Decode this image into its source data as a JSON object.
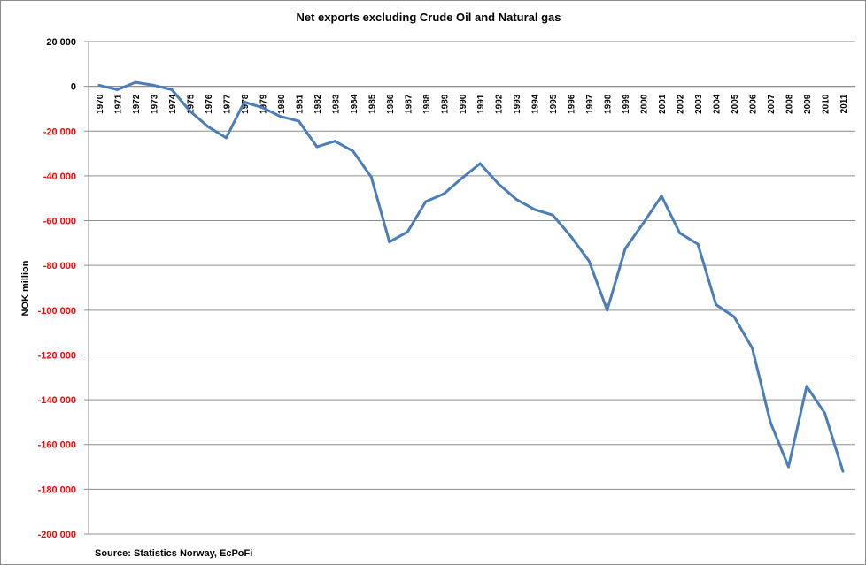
{
  "chart_data": {
    "type": "line",
    "title": "Net exports excluding Crude Oil and Natural gas",
    "ylabel": "NOK million",
    "xlabel": "",
    "source": "Source: Statistics  Norway, EcPoFi",
    "ylim": [
      -200000,
      20000
    ],
    "y_ticks": [
      20000,
      0,
      -20000,
      -40000,
      -60000,
      -80000,
      -100000,
      -120000,
      -140000,
      -160000,
      -180000,
      -200000
    ],
    "y_tick_labels": [
      "20 000",
      "0",
      "-20 000",
      "-40 000",
      "-60 000",
      "-80 000",
      "-100 000",
      "-120 000",
      "-140 000",
      "-160 000",
      "-180 000",
      "-200 000"
    ],
    "grid": true,
    "legend": "none",
    "colors": {
      "line": "#4a7ebb",
      "negative_tick": "#ff0000",
      "positive_tick": "#000000",
      "grid": "#8c8c8c"
    },
    "categories": [
      "1970",
      "1971",
      "1972",
      "1973",
      "1974",
      "1975",
      "1976",
      "1977",
      "1978",
      "1979",
      "1980",
      "1981",
      "1982",
      "1983",
      "1984",
      "1985",
      "1986",
      "1987",
      "1988",
      "1989",
      "1990",
      "1991",
      "1992",
      "1993",
      "1994",
      "1995",
      "1996",
      "1997",
      "1998",
      "1999",
      "2000",
      "2001",
      "2002",
      "2003",
      "2004",
      "2005",
      "2006",
      "2007",
      "2008",
      "2009",
      "2010",
      "2011"
    ],
    "series": [
      {
        "values": [
          500,
          -1500,
          1800,
          500,
          -1500,
          -11000,
          -18000,
          -23000,
          -7000,
          -9500,
          -13500,
          -15500,
          -27000,
          -24500,
          -29000,
          -40500,
          -69500,
          -65000,
          -51500,
          -48000,
          -41000,
          -34500,
          -43500,
          -50500,
          -55000,
          -57500,
          -67000,
          -78000,
          -100000,
          -72500,
          -61000,
          -49000,
          -65500,
          -70500,
          -97500,
          -103000,
          -117000,
          -150000,
          -170000,
          -134000,
          -146000,
          -172000
        ]
      }
    ]
  }
}
